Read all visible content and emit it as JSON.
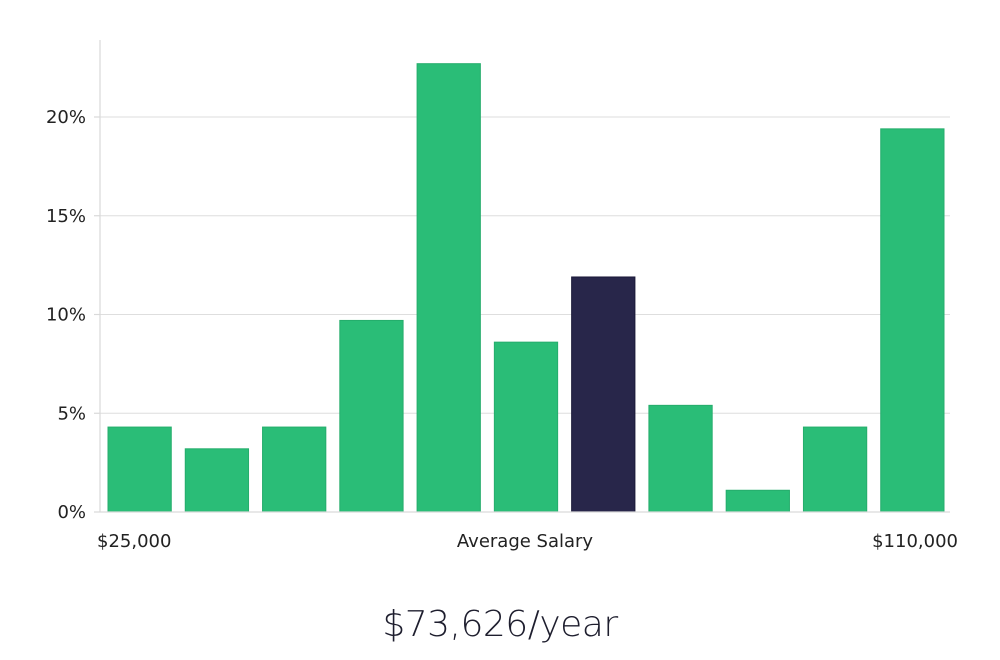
{
  "chart_data": {
    "type": "bar",
    "title": "",
    "xlabel": "Average Salary",
    "ylabel": "",
    "x_range_labels": {
      "min": "$25,000",
      "max": "$110,000"
    },
    "ylim": [
      0,
      24
    ],
    "yticks": [
      {
        "value": 0,
        "label": "0%"
      },
      {
        "value": 5,
        "label": "5%"
      },
      {
        "value": 10,
        "label": "10%"
      },
      {
        "value": 15,
        "label": "15%"
      },
      {
        "value": 20,
        "label": "20%"
      }
    ],
    "values": [
      4.3,
      3.2,
      4.3,
      9.7,
      22.7,
      8.6,
      11.9,
      5.4,
      1.1,
      4.3,
      19.4
    ],
    "highlight_index": 6,
    "grid": true,
    "colors": {
      "bar": "#2abd77",
      "highlight": "#28264a",
      "grid": "#dedede"
    }
  },
  "salary": {
    "value": "$73,626/year"
  }
}
